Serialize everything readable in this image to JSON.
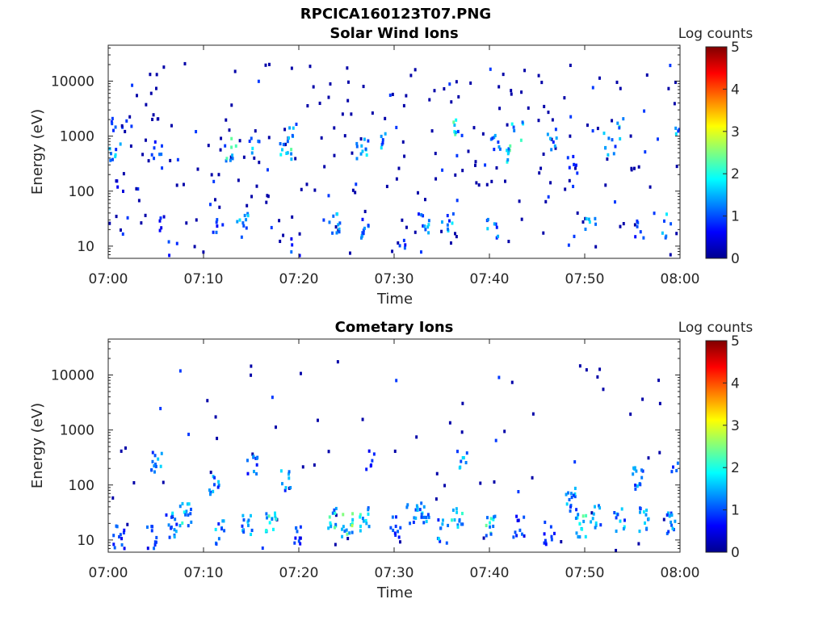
{
  "figure_title": "RPCICA160123T07.PNG",
  "chart_data": [
    {
      "type": "heatmap",
      "title": "Solar Wind Ions",
      "xlabel": "Time",
      "ylabel": "Energy (eV)",
      "x_ticks": [
        "07:00",
        "07:10",
        "07:20",
        "07:30",
        "07:40",
        "07:50",
        "08:00"
      ],
      "x_range": [
        "07:00",
        "08:00"
      ],
      "y_scale": "log",
      "y_ticks": [
        10,
        100,
        1000,
        10000
      ],
      "ylim": [
        6,
        45000
      ],
      "colorbar": {
        "label": "Log counts",
        "range": [
          0,
          5
        ],
        "ticks": [
          0,
          1,
          2,
          3,
          4,
          5
        ]
      },
      "clusters": [
        {
          "t": 0.2,
          "e": 1500,
          "v": 1.0,
          "n": 6
        },
        {
          "t": 0.6,
          "e": 650,
          "v": 1.5,
          "n": 8
        },
        {
          "t": 1.0,
          "e": 120,
          "v": 0.5,
          "n": 4
        },
        {
          "t": 5.0,
          "e": 600,
          "v": 1.0,
          "n": 6
        },
        {
          "t": 5.3,
          "e": 30,
          "v": 0.8,
          "n": 5
        },
        {
          "t": 6.8,
          "e": 8,
          "v": 1.0,
          "n": 4
        },
        {
          "t": 11.5,
          "e": 22,
          "v": 1.0,
          "n": 6
        },
        {
          "t": 12.8,
          "e": 600,
          "v": 2.0,
          "n": 8
        },
        {
          "t": 14.0,
          "e": 25,
          "v": 1.5,
          "n": 10
        },
        {
          "t": 15.2,
          "e": 800,
          "v": 1.5,
          "n": 6
        },
        {
          "t": 18.5,
          "e": 600,
          "v": 2.0,
          "n": 10
        },
        {
          "t": 18.8,
          "e": 1500,
          "v": 2.0,
          "n": 5
        },
        {
          "t": 19.5,
          "e": 9,
          "v": 1.0,
          "n": 5
        },
        {
          "t": 23.6,
          "e": 25,
          "v": 1.5,
          "n": 10
        },
        {
          "t": 26.5,
          "e": 600,
          "v": 2.0,
          "n": 10
        },
        {
          "t": 27.0,
          "e": 25,
          "v": 1.2,
          "n": 10
        },
        {
          "t": 28.5,
          "e": 900,
          "v": 1.5,
          "n": 5
        },
        {
          "t": 30.5,
          "e": 10,
          "v": 1.0,
          "n": 6
        },
        {
          "t": 33.0,
          "e": 25,
          "v": 1.5,
          "n": 10
        },
        {
          "t": 35.5,
          "e": 30,
          "v": 1.5,
          "n": 8
        },
        {
          "t": 36.6,
          "e": 1500,
          "v": 2.0,
          "n": 6
        },
        {
          "t": 40.2,
          "e": 25,
          "v": 1.5,
          "n": 8
        },
        {
          "t": 40.5,
          "e": 800,
          "v": 1.5,
          "n": 8
        },
        {
          "t": 41.8,
          "e": 600,
          "v": 2.0,
          "n": 8
        },
        {
          "t": 42.8,
          "e": 1500,
          "v": 2.0,
          "n": 6
        },
        {
          "t": 46.5,
          "e": 700,
          "v": 1.5,
          "n": 6
        },
        {
          "t": 48.5,
          "e": 300,
          "v": 1.0,
          "n": 5
        },
        {
          "t": 50.5,
          "e": 25,
          "v": 1.5,
          "n": 6
        },
        {
          "t": 52.5,
          "e": 800,
          "v": 1.5,
          "n": 8
        },
        {
          "t": 53.8,
          "e": 1500,
          "v": 2.0,
          "n": 5
        },
        {
          "t": 55.5,
          "e": 25,
          "v": 1.0,
          "n": 6
        },
        {
          "t": 58.5,
          "e": 25,
          "v": 1.5,
          "n": 6
        },
        {
          "t": 59.7,
          "e": 1000,
          "v": 1.5,
          "n": 5
        }
      ]
    },
    {
      "type": "heatmap",
      "title": "Cometary Ions",
      "xlabel": "Time",
      "ylabel": "Energy (eV)",
      "x_ticks": [
        "07:00",
        "07:10",
        "07:20",
        "07:30",
        "07:40",
        "07:50",
        "08:00"
      ],
      "x_range": [
        "07:00",
        "08:00"
      ],
      "y_scale": "log",
      "y_ticks": [
        10,
        100,
        1000,
        10000
      ],
      "ylim": [
        6,
        45000
      ],
      "colorbar": {
        "label": "Log counts",
        "range": [
          0,
          5
        ],
        "ticks": [
          0,
          1,
          2,
          3,
          4,
          5
        ]
      },
      "clusters": [
        {
          "t": 1.0,
          "e": 12,
          "v": 1.0,
          "n": 12
        },
        {
          "t": 4.5,
          "e": 12,
          "v": 1.0,
          "n": 10
        },
        {
          "t": 5.0,
          "e": 300,
          "v": 1.5,
          "n": 12
        },
        {
          "t": 6.5,
          "e": 20,
          "v": 1.5,
          "n": 14
        },
        {
          "t": 8.0,
          "e": 30,
          "v": 1.8,
          "n": 14
        },
        {
          "t": 11.0,
          "e": 100,
          "v": 1.5,
          "n": 10
        },
        {
          "t": 11.5,
          "e": 15,
          "v": 1.5,
          "n": 10
        },
        {
          "t": 14.5,
          "e": 20,
          "v": 1.5,
          "n": 12
        },
        {
          "t": 15.0,
          "e": 250,
          "v": 1.2,
          "n": 10
        },
        {
          "t": 17.0,
          "e": 25,
          "v": 2.0,
          "n": 14
        },
        {
          "t": 18.5,
          "e": 120,
          "v": 1.5,
          "n": 8
        },
        {
          "t": 20.0,
          "e": 15,
          "v": 1.0,
          "n": 10
        },
        {
          "t": 23.5,
          "e": 25,
          "v": 2.0,
          "n": 12
        },
        {
          "t": 25.0,
          "e": 20,
          "v": 2.3,
          "n": 14
        },
        {
          "t": 26.8,
          "e": 25,
          "v": 2.0,
          "n": 12
        },
        {
          "t": 27.5,
          "e": 300,
          "v": 1.0,
          "n": 6
        },
        {
          "t": 30.0,
          "e": 20,
          "v": 1.0,
          "n": 10
        },
        {
          "t": 31.8,
          "e": 30,
          "v": 1.5,
          "n": 10
        },
        {
          "t": 33.0,
          "e": 30,
          "v": 1.5,
          "n": 12
        },
        {
          "t": 35.0,
          "e": 15,
          "v": 1.5,
          "n": 10
        },
        {
          "t": 36.5,
          "e": 25,
          "v": 2.0,
          "n": 12
        },
        {
          "t": 37.0,
          "e": 300,
          "v": 1.5,
          "n": 8
        },
        {
          "t": 40.0,
          "e": 20,
          "v": 2.0,
          "n": 12
        },
        {
          "t": 43.0,
          "e": 20,
          "v": 1.0,
          "n": 10
        },
        {
          "t": 46.2,
          "e": 15,
          "v": 1.0,
          "n": 10
        },
        {
          "t": 48.5,
          "e": 60,
          "v": 1.5,
          "n": 14
        },
        {
          "t": 49.5,
          "e": 20,
          "v": 2.0,
          "n": 14
        },
        {
          "t": 51.0,
          "e": 30,
          "v": 1.5,
          "n": 10
        },
        {
          "t": 53.5,
          "e": 25,
          "v": 1.5,
          "n": 10
        },
        {
          "t": 55.5,
          "e": 150,
          "v": 1.5,
          "n": 14
        },
        {
          "t": 56.0,
          "e": 25,
          "v": 1.5,
          "n": 12
        },
        {
          "t": 58.8,
          "e": 20,
          "v": 1.5,
          "n": 12
        },
        {
          "t": 59.6,
          "e": 200,
          "v": 1.0,
          "n": 6
        }
      ]
    }
  ]
}
